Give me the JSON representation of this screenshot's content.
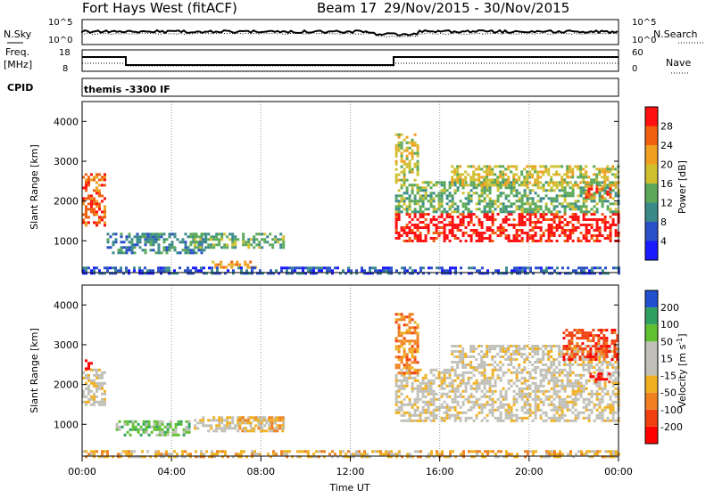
{
  "header": {
    "title": "Fort Hays West (fitACF)",
    "beam": "Beam 17",
    "dates": "29/Nov/2015 - 30/Nov/2015"
  },
  "top_panel": {
    "nsky_label": "N.Sky",
    "nsearch_label": "N.Search",
    "freq_label": "Freq.",
    "freq_unit": "[MHz]",
    "nave_label": "Nave",
    "cpid_label": "CPID",
    "cpid_text": "themis -3300 IF",
    "noise_ticks": [
      "10^5",
      "10^0"
    ],
    "freq_ticks": [
      "18",
      "8"
    ],
    "nave_ticks": [
      "60",
      "0"
    ]
  },
  "chart_data": [
    {
      "type": "heatmap",
      "name": "power",
      "ylabel": "Slant Range [km]",
      "yticks": [
        "4000",
        "3000",
        "2000",
        "1000"
      ],
      "ylim": [
        200,
        4500
      ],
      "colorbar_label": "Power [dB]",
      "colorbar_ticks": [
        "28",
        "24",
        "20",
        "16",
        "12",
        "8",
        "4"
      ],
      "colors": [
        "#1a1aff",
        "#2a50c8",
        "#3a8a8a",
        "#5aa858",
        "#d0c030",
        "#f0a020",
        "#f06010",
        "#ff1010"
      ],
      "regions": [
        {
          "t0": 0.0,
          "t1": 1.0,
          "r0": 1400,
          "r1": 2700,
          "level": 6
        },
        {
          "t0": 1.1,
          "t1": 5.5,
          "r0": 700,
          "r1": 1200,
          "level": 2
        },
        {
          "t0": 5.0,
          "t1": 9.0,
          "r0": 800,
          "r1": 1200,
          "level": 3
        },
        {
          "t0": 5.8,
          "t1": 7.8,
          "r0": 300,
          "r1": 500,
          "level": 5
        },
        {
          "t0": 0.0,
          "t1": 24.0,
          "r0": 200,
          "r1": 350,
          "level": 1
        },
        {
          "t0": 14.0,
          "t1": 24.0,
          "r0": 1000,
          "r1": 1700,
          "level": 7
        },
        {
          "t0": 14.0,
          "t1": 24.0,
          "r0": 1700,
          "r1": 2500,
          "level": 3
        },
        {
          "t0": 14.0,
          "t1": 15.0,
          "r0": 2500,
          "r1": 3700,
          "level": 4
        },
        {
          "t0": 16.5,
          "t1": 24.0,
          "r0": 2400,
          "r1": 2900,
          "level": 4
        },
        {
          "t0": 22.5,
          "t1": 23.6,
          "r0": 2100,
          "r1": 2400,
          "level": 6
        }
      ]
    },
    {
      "type": "heatmap",
      "name": "velocity",
      "ylabel": "Slant Range [km]",
      "yticks": [
        "4000",
        "3000",
        "2000",
        "1000"
      ],
      "ylim": [
        200,
        4500
      ],
      "xlabel": "Time UT",
      "xticks": [
        "00:00",
        "04:00",
        "08:00",
        "12:00",
        "16:00",
        "20:00",
        "00:00"
      ],
      "colorbar_label": "Velocity [m s-1]",
      "colorbar_ticks": [
        "200",
        "100",
        "50",
        "15",
        "-15",
        "-50",
        "-100",
        "-200"
      ],
      "colors": [
        "#ff0000",
        "#f04010",
        "#f08020",
        "#f0b020",
        "#c0c0b8",
        "#c0c0b8",
        "#60c030",
        "#30a060",
        "#2050d0"
      ],
      "regions": [
        {
          "t0": 0.0,
          "t1": 1.0,
          "r0": 1500,
          "r1": 2400,
          "level": 4
        },
        {
          "t0": 0.0,
          "t1": 0.4,
          "r0": 2400,
          "r1": 2700,
          "level": 0
        },
        {
          "t0": 1.5,
          "t1": 4.8,
          "r0": 700,
          "r1": 1100,
          "level": 6
        },
        {
          "t0": 5.0,
          "t1": 9.0,
          "r0": 800,
          "r1": 1200,
          "level": 4
        },
        {
          "t0": 7.0,
          "t1": 9.0,
          "r0": 800,
          "r1": 1200,
          "level": 3
        },
        {
          "t0": 0.0,
          "t1": 24.0,
          "r0": 200,
          "r1": 350,
          "level": 3
        },
        {
          "t0": 14.0,
          "t1": 24.0,
          "r0": 1100,
          "r1": 2400,
          "level": 4
        },
        {
          "t0": 14.0,
          "t1": 15.0,
          "r0": 2300,
          "r1": 3800,
          "level": 2
        },
        {
          "t0": 16.5,
          "t1": 24.0,
          "r0": 2400,
          "r1": 3000,
          "level": 4
        },
        {
          "t0": 21.5,
          "t1": 24.0,
          "r0": 2600,
          "r1": 3400,
          "level": 1
        },
        {
          "t0": 22.7,
          "t1": 23.6,
          "r0": 2050,
          "r1": 2300,
          "level": 0
        }
      ]
    }
  ]
}
